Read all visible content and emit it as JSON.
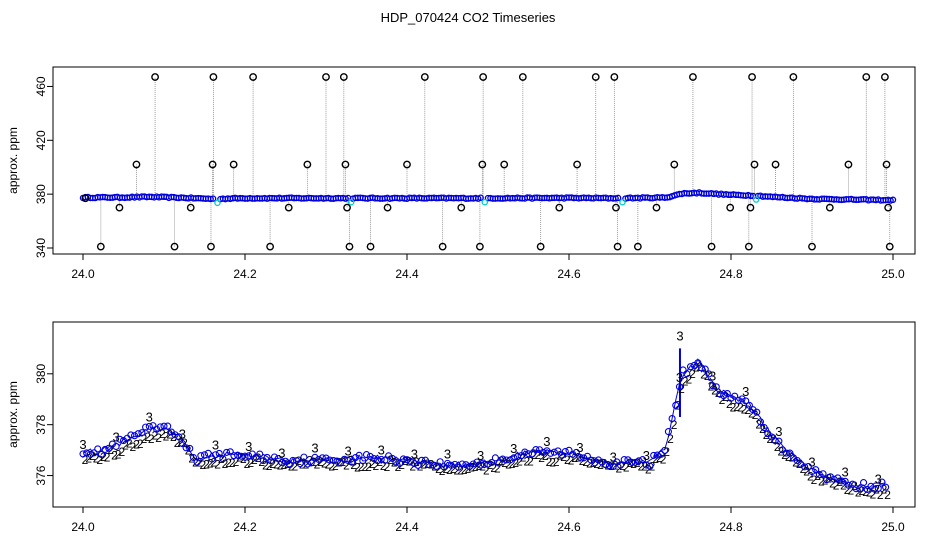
{
  "title": "HDP_070424  CO2 Timeseries",
  "colors": {
    "bg": "#ffffff",
    "axis": "#000000",
    "trace": "#888888",
    "blue": "#0000dd",
    "green": "#00cc00",
    "cyan": "#00cccc",
    "black": "#000000"
  },
  "chart_data": [
    {
      "type": "scatter",
      "ylabel": "approx. ppm",
      "xlabel": "",
      "xlim": [
        24.0,
        25.0
      ],
      "ylim": [
        340,
        470
      ],
      "xticks": [
        "24.0",
        "24.2",
        "24.4",
        "24.6",
        "24.8",
        "25.0"
      ],
      "yticks": [
        "340",
        "380",
        "420",
        "460"
      ],
      "baseline": [
        [
          24.0,
          377.5
        ],
        [
          24.05,
          377.6
        ],
        [
          24.08,
          378.0
        ],
        [
          24.12,
          377.4
        ],
        [
          24.16,
          376.5
        ],
        [
          24.2,
          377.0
        ],
        [
          24.3,
          377.0
        ],
        [
          24.4,
          377.0
        ],
        [
          24.5,
          377.0
        ],
        [
          24.6,
          377.2
        ],
        [
          24.665,
          377.0
        ],
        [
          24.72,
          377.5
        ],
        [
          24.74,
          380.5
        ],
        [
          24.76,
          381.0
        ],
        [
          24.8,
          379.5
        ],
        [
          24.83,
          379.0
        ],
        [
          24.85,
          378.0
        ],
        [
          24.9,
          376.5
        ],
        [
          24.95,
          376.0
        ],
        [
          25.0,
          375.5
        ]
      ],
      "gaps": [
        24.165,
        24.33,
        24.495,
        24.665,
        24.83
      ],
      "outliers": [
        {
          "x": 24.003,
          "y": 377
        },
        {
          "x": 24.022,
          "y": 341
        },
        {
          "x": 24.045,
          "y": 370
        },
        {
          "x": 24.066,
          "y": 402
        },
        {
          "x": 24.089,
          "y": 467
        },
        {
          "x": 24.113,
          "y": 341
        },
        {
          "x": 24.133,
          "y": 370
        },
        {
          "x": 24.158,
          "y": 341
        },
        {
          "x": 24.16,
          "y": 402
        },
        {
          "x": 24.161,
          "y": 467
        },
        {
          "x": 24.186,
          "y": 402
        },
        {
          "x": 24.21,
          "y": 467
        },
        {
          "x": 24.231,
          "y": 341
        },
        {
          "x": 24.254,
          "y": 370
        },
        {
          "x": 24.277,
          "y": 402
        },
        {
          "x": 24.3,
          "y": 467
        },
        {
          "x": 24.322,
          "y": 467
        },
        {
          "x": 24.324,
          "y": 402
        },
        {
          "x": 24.326,
          "y": 370
        },
        {
          "x": 24.329,
          "y": 341
        },
        {
          "x": 24.355,
          "y": 341
        },
        {
          "x": 24.376,
          "y": 370
        },
        {
          "x": 24.4,
          "y": 402
        },
        {
          "x": 24.422,
          "y": 467
        },
        {
          "x": 24.444,
          "y": 341
        },
        {
          "x": 24.467,
          "y": 370
        },
        {
          "x": 24.49,
          "y": 341
        },
        {
          "x": 24.493,
          "y": 402
        },
        {
          "x": 24.494,
          "y": 467
        },
        {
          "x": 24.52,
          "y": 402
        },
        {
          "x": 24.543,
          "y": 467
        },
        {
          "x": 24.565,
          "y": 341
        },
        {
          "x": 24.588,
          "y": 370
        },
        {
          "x": 24.61,
          "y": 402
        },
        {
          "x": 24.633,
          "y": 467
        },
        {
          "x": 24.656,
          "y": 467
        },
        {
          "x": 24.658,
          "y": 370
        },
        {
          "x": 24.66,
          "y": 341
        },
        {
          "x": 24.685,
          "y": 341
        },
        {
          "x": 24.708,
          "y": 370
        },
        {
          "x": 24.73,
          "y": 402
        },
        {
          "x": 24.753,
          "y": 467
        },
        {
          "x": 24.776,
          "y": 341
        },
        {
          "x": 24.799,
          "y": 370
        },
        {
          "x": 24.822,
          "y": 341
        },
        {
          "x": 24.824,
          "y": 370
        },
        {
          "x": 24.826,
          "y": 467
        },
        {
          "x": 24.829,
          "y": 402
        },
        {
          "x": 24.855,
          "y": 402
        },
        {
          "x": 24.877,
          "y": 467
        },
        {
          "x": 24.9,
          "y": 341
        },
        {
          "x": 24.922,
          "y": 370
        },
        {
          "x": 24.945,
          "y": 402
        },
        {
          "x": 24.967,
          "y": 467
        },
        {
          "x": 24.99,
          "y": 467
        },
        {
          "x": 24.992,
          "y": 402
        },
        {
          "x": 24.994,
          "y": 370
        },
        {
          "x": 24.996,
          "y": 341
        }
      ]
    },
    {
      "type": "scatter",
      "ylabel": "approx. ppm",
      "xlabel": "",
      "xlim": [
        24.0,
        25.0
      ],
      "ylim": [
        375,
        381.8
      ],
      "xticks": [
        "24.0",
        "24.2",
        "24.4",
        "24.6",
        "24.8",
        "25.0"
      ],
      "yticks": [
        "376",
        "378",
        "380"
      ],
      "series": [
        {
          "symbol": "3",
          "color": "#0000dd",
          "points": [
            [
              24.0,
              377.0
            ],
            [
              24.02,
              376.9
            ],
            [
              24.04,
              377.2
            ],
            [
              24.06,
              377.5
            ],
            [
              24.08,
              377.8
            ],
            [
              24.1,
              377.9
            ],
            [
              24.12,
              377.5
            ],
            [
              24.14,
              376.6
            ],
            [
              24.16,
              376.8
            ],
            [
              24.2,
              376.8
            ],
            [
              24.25,
              376.6
            ],
            [
              24.3,
              376.6
            ],
            [
              24.35,
              376.7
            ],
            [
              24.4,
              376.6
            ],
            [
              24.45,
              376.4
            ],
            [
              24.5,
              376.5
            ],
            [
              24.55,
              376.9
            ],
            [
              24.6,
              376.9
            ],
            [
              24.65,
              376.5
            ],
            [
              24.7,
              376.5
            ],
            [
              24.72,
              377.2
            ],
            [
              24.74,
              380.0
            ],
            [
              24.76,
              380.5
            ],
            [
              24.78,
              379.5
            ],
            [
              24.8,
              379.0
            ],
            [
              24.82,
              378.9
            ],
            [
              24.84,
              378.0
            ],
            [
              24.86,
              377.2
            ],
            [
              24.9,
              376.2
            ],
            [
              24.95,
              375.6
            ],
            [
              24.99,
              375.6
            ]
          ]
        },
        {
          "symbol": "2",
          "color": "#00cc00",
          "points": [
            [
              24.0,
              376.8
            ],
            [
              24.02,
              376.8
            ],
            [
              24.04,
              377.0
            ],
            [
              24.06,
              377.3
            ],
            [
              24.08,
              377.6
            ],
            [
              24.1,
              377.7
            ],
            [
              24.12,
              377.3
            ],
            [
              24.14,
              376.5
            ],
            [
              24.16,
              376.6
            ],
            [
              24.2,
              376.6
            ],
            [
              24.25,
              376.5
            ],
            [
              24.3,
              376.5
            ],
            [
              24.35,
              376.5
            ],
            [
              24.4,
              376.5
            ],
            [
              24.45,
              376.3
            ],
            [
              24.5,
              376.4
            ],
            [
              24.55,
              376.7
            ],
            [
              24.6,
              376.7
            ],
            [
              24.65,
              376.4
            ],
            [
              24.7,
              376.4
            ],
            [
              24.72,
              377.0
            ],
            [
              24.74,
              379.8
            ],
            [
              24.76,
              380.3
            ],
            [
              24.78,
              379.3
            ],
            [
              24.8,
              378.8
            ],
            [
              24.82,
              378.7
            ],
            [
              24.84,
              377.8
            ],
            [
              24.86,
              377.0
            ],
            [
              24.9,
              376.0
            ],
            [
              24.95,
              375.5
            ],
            [
              24.99,
              375.4
            ]
          ]
        }
      ]
    }
  ]
}
